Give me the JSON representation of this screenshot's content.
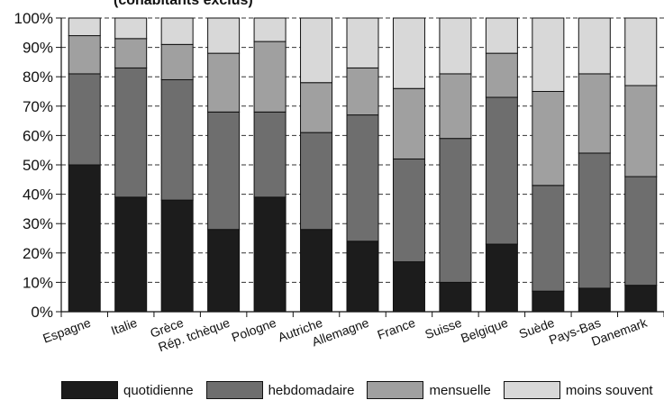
{
  "chart_data": {
    "type": "bar",
    "stacked": true,
    "title": "(cohabitants exclus)",
    "xlabel": "",
    "ylabel": "",
    "ylim": [
      0,
      100
    ],
    "ytick_labels": [
      "0%",
      "10%",
      "20%",
      "30%",
      "40%",
      "50%",
      "60%",
      "70%",
      "80%",
      "90%",
      "100%"
    ],
    "grid": "horizontal-dashed",
    "legend_position": "bottom",
    "categories": [
      "Espagne",
      "Italie",
      "Grèce",
      "Rép. tchèque",
      "Pologne",
      "Autriche",
      "Allemagne",
      "France",
      "Suisse",
      "Belgique",
      "Suède",
      "Pays-Bas",
      "Danemark"
    ],
    "series": [
      {
        "name": "quotidienne",
        "color": "#1c1c1c",
        "values": [
          50,
          39,
          38,
          28,
          39,
          28,
          24,
          17,
          10,
          23,
          7,
          8,
          9
        ]
      },
      {
        "name": "hebdomadaire",
        "color": "#6e6e6e",
        "values": [
          31,
          44,
          41,
          40,
          29,
          33,
          43,
          35,
          49,
          50,
          36,
          46,
          37
        ]
      },
      {
        "name": "mensuelle",
        "color": "#a0a0a0",
        "values": [
          13,
          10,
          12,
          20,
          24,
          17,
          16,
          24,
          22,
          15,
          32,
          27,
          31
        ]
      },
      {
        "name": "moins souvent",
        "color": "#d8d8d8",
        "values": [
          6,
          7,
          9,
          12,
          8,
          22,
          17,
          24,
          19,
          12,
          25,
          19,
          23
        ]
      }
    ]
  }
}
